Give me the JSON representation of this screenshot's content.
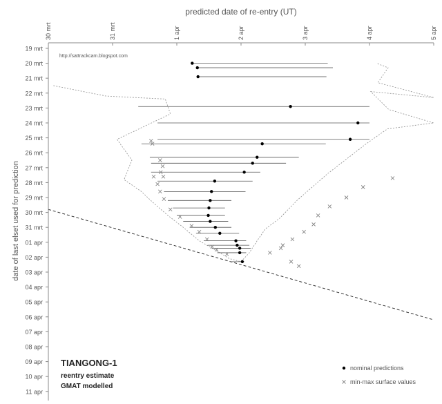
{
  "chart_data": {
    "type": "scatter",
    "title": "",
    "top_axis_label": "predicted date of re-entry (UT)",
    "left_axis_label": "date of last elset used for prediction",
    "watermark": "http://sattrackcam.blogspot.com",
    "annotation": {
      "title": "TIANGONG-1",
      "line1": "reentry estimate",
      "line2": "GMAT modelled"
    },
    "x_ticks": [
      "30 mrt",
      "31 mrt",
      "1 apr",
      "2 apr",
      "3 apr",
      "4 apr",
      "5 apr"
    ],
    "x_range": [
      0,
      6
    ],
    "y_ticks": [
      "19 mrt",
      "20 mrt",
      "21 mrt",
      "22 mrt",
      "23 mrt",
      "24 mrt",
      "25 mrt",
      "26 mrt",
      "27 mrt",
      "28 mrt",
      "29 mrt",
      "30 mrt",
      "31 mrt",
      "01 apr",
      "02 apr",
      "03 apr",
      "04 apr",
      "05 apr",
      "06 apr",
      "07 apr",
      "08 apr",
      "09 apr",
      "10 apr",
      "11 apr"
    ],
    "y_range": [
      0,
      26
    ],
    "legend": {
      "nominal": "nominal predictions",
      "minmax": "min-max surface values",
      "placement": "bottom-right"
    },
    "colors": {
      "axis": "#888888",
      "line": "#555555",
      "range_line": "#888888",
      "dot": "#000000",
      "cross": "#888888",
      "dashed_outline": "#999999"
    },
    "series": [
      {
        "name": "nominal predictions",
        "marker": "dot",
        "points": [
          [
            2.24,
            1.0
          ],
          [
            2.32,
            1.3
          ],
          [
            2.33,
            1.9
          ],
          [
            3.77,
            3.9
          ],
          [
            4.82,
            5.0
          ],
          [
            4.7,
            6.1
          ],
          [
            3.33,
            6.4
          ],
          [
            3.25,
            7.3
          ],
          [
            3.18,
            7.7
          ],
          [
            3.05,
            8.3
          ],
          [
            2.59,
            8.9
          ],
          [
            2.54,
            9.6
          ],
          [
            2.52,
            10.2
          ],
          [
            2.5,
            10.7
          ],
          [
            2.49,
            11.2
          ],
          [
            2.52,
            11.6
          ],
          [
            2.6,
            12.0
          ],
          [
            2.67,
            12.4
          ],
          [
            2.92,
            12.9
          ],
          [
            2.94,
            13.2
          ],
          [
            2.98,
            13.4
          ],
          [
            2.98,
            13.7
          ],
          [
            3.02,
            14.3
          ]
        ]
      },
      {
        "name": "min-max surface values",
        "marker": "cross",
        "points": [
          [
            1.6,
            6.2
          ],
          [
            1.62,
            6.4
          ],
          [
            1.74,
            7.5
          ],
          [
            1.78,
            7.9
          ],
          [
            1.75,
            8.3
          ],
          [
            1.64,
            8.6
          ],
          [
            1.79,
            8.6
          ],
          [
            1.7,
            9.1
          ],
          [
            1.74,
            9.6
          ],
          [
            1.8,
            10.1
          ],
          [
            1.9,
            10.8
          ],
          [
            2.05,
            11.3
          ],
          [
            2.23,
            11.9
          ],
          [
            2.35,
            12.3
          ],
          [
            2.47,
            12.8
          ],
          [
            2.55,
            13.3
          ],
          [
            2.62,
            13.5
          ],
          [
            2.78,
            13.8
          ],
          [
            3.45,
            13.7
          ],
          [
            3.62,
            13.4
          ],
          [
            3.65,
            13.2
          ],
          [
            3.8,
            12.8
          ],
          [
            3.98,
            12.3
          ],
          [
            4.13,
            11.8
          ],
          [
            4.2,
            11.2
          ],
          [
            4.38,
            10.6
          ],
          [
            4.64,
            10.0
          ],
          [
            4.9,
            9.3
          ],
          [
            5.36,
            8.7
          ],
          [
            3.78,
            14.3
          ],
          [
            3.9,
            14.6
          ]
        ]
      }
    ],
    "range_lines": [
      [
        1,
        2.24,
        4.35
      ],
      [
        1.3,
        2.32,
        4.43
      ],
      [
        1.9,
        2.33,
        4.33
      ],
      [
        3.9,
        1.4,
        5.0
      ],
      [
        5.0,
        1.7,
        5.0
      ],
      [
        6.1,
        1.7,
        5.0
      ],
      [
        6.4,
        1.45,
        4.32
      ],
      [
        7.3,
        1.58,
        3.9
      ],
      [
        7.7,
        1.6,
        3.7
      ],
      [
        8.3,
        1.6,
        3.3
      ],
      [
        8.9,
        1.7,
        3.18
      ],
      [
        9.6,
        1.8,
        3.07
      ],
      [
        10.2,
        1.86,
        2.85
      ],
      [
        10.7,
        1.94,
        2.75
      ],
      [
        11.2,
        2.0,
        2.75
      ],
      [
        11.6,
        2.1,
        2.8
      ],
      [
        12.0,
        2.2,
        2.85
      ],
      [
        12.4,
        2.3,
        2.97
      ],
      [
        12.9,
        2.42,
        3.08
      ],
      [
        13.2,
        2.48,
        3.13
      ],
      [
        13.4,
        2.55,
        3.15
      ],
      [
        13.7,
        2.63,
        3.08
      ],
      [
        14.3,
        2.85,
        3.05
      ]
    ],
    "envelope_outline": [
      [
        0.08,
        2.5
      ],
      [
        0.9,
        3.2
      ],
      [
        1.82,
        3.4
      ],
      [
        1.9,
        4.4
      ],
      [
        1.07,
        6.1
      ],
      [
        1.3,
        7.5
      ],
      [
        1.18,
        8.8
      ],
      [
        1.45,
        9.6
      ],
      [
        1.62,
        10.3
      ],
      [
        1.86,
        11.2
      ],
      [
        2.1,
        12.0
      ],
      [
        2.35,
        12.9
      ],
      [
        2.63,
        13.6
      ],
      [
        2.82,
        14.1
      ],
      [
        3.0,
        14.3
      ],
      [
        3.13,
        13.7
      ],
      [
        3.25,
        12.9
      ],
      [
        3.38,
        12.1
      ],
      [
        3.6,
        11.4
      ],
      [
        3.87,
        10.2
      ],
      [
        4.35,
        8.4
      ],
      [
        4.95,
        6.4
      ],
      [
        5.28,
        5.4
      ],
      [
        6.0,
        5.0
      ],
      [
        5.3,
        4.1
      ],
      [
        5.02,
        2.9
      ],
      [
        6.0,
        3.3
      ],
      [
        5.13,
        2.3
      ],
      [
        5.29,
        1.3
      ],
      [
        5.11,
        1.0
      ]
    ],
    "reference_line": [
      [
        0,
        10.8
      ],
      [
        6,
        18.2
      ]
    ]
  }
}
